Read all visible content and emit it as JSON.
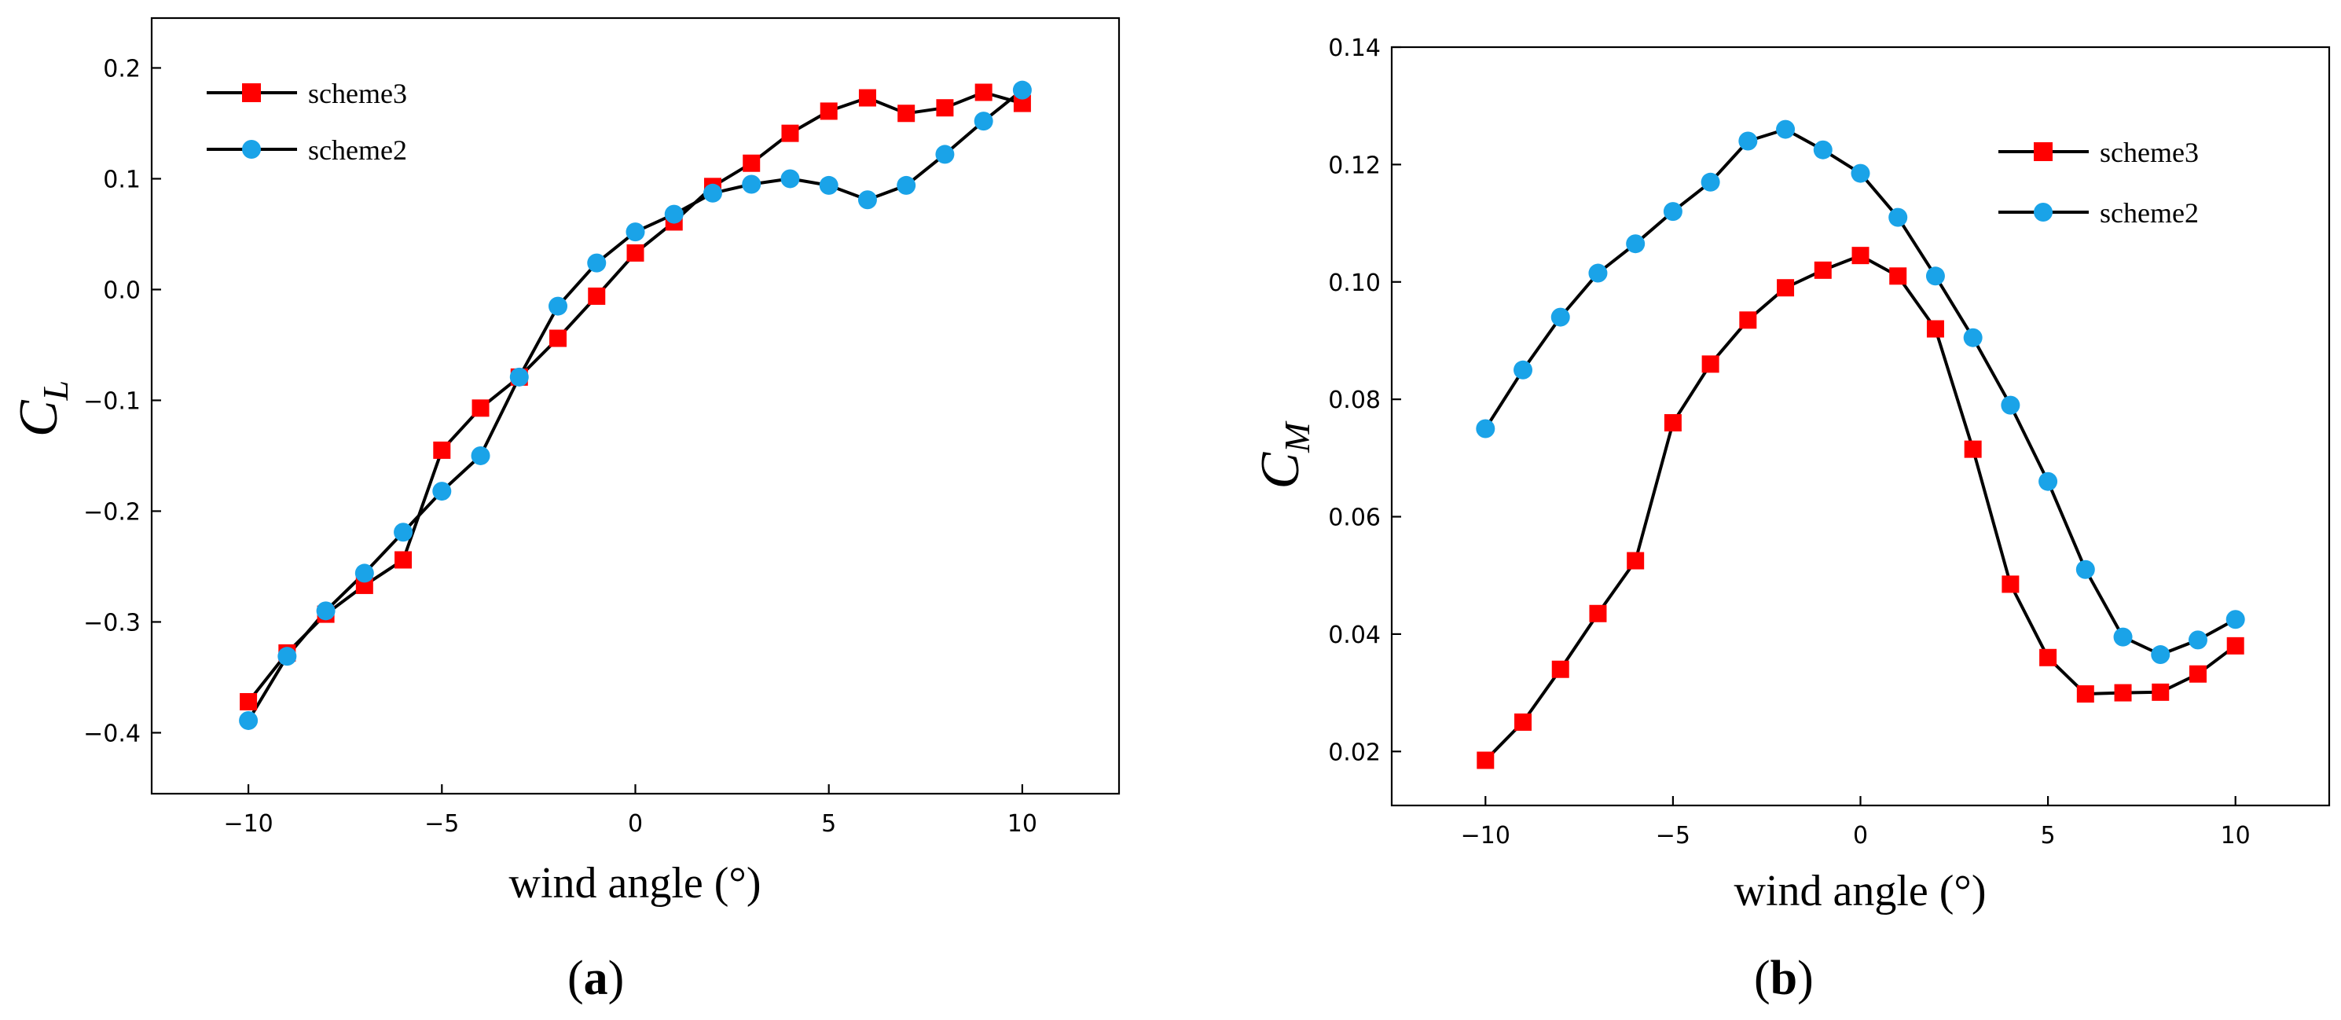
{
  "chart_data": [
    {
      "type": "line",
      "panel_label": "a",
      "title": "",
      "xlabel": "wind angle (°)",
      "ylabel": "C",
      "ylabel_sub": "L",
      "xlim": [
        -12.5,
        12.5
      ],
      "ylim": [
        -0.455,
        0.245
      ],
      "xticks": [
        -10,
        -5,
        0,
        5,
        10
      ],
      "yticks": [
        -0.4,
        -0.3,
        -0.2,
        -0.1,
        0.0,
        0.1,
        0.2
      ],
      "yticklabels": [
        "−0.4",
        "−0.3",
        "−0.2",
        "−0.1",
        "0.0",
        "0.1",
        "0.2"
      ],
      "xticklabels": [
        "−10",
        "−5",
        "0",
        "5",
        "10"
      ],
      "legend_position": "top-left",
      "x": [
        -10,
        -9,
        -8,
        -7,
        -6,
        -5,
        -4,
        -3,
        -2,
        -1,
        0,
        1,
        2,
        3,
        4,
        5,
        6,
        7,
        8,
        9,
        10
      ],
      "series": [
        {
          "name": "scheme3",
          "marker": "square",
          "color": "#ff0000",
          "values": [
            -0.372,
            -0.328,
            -0.293,
            -0.267,
            -0.244,
            -0.145,
            -0.107,
            -0.079,
            -0.044,
            -0.006,
            0.033,
            0.061,
            0.093,
            0.114,
            0.141,
            0.161,
            0.173,
            0.159,
            0.164,
            0.178,
            0.168
          ]
        },
        {
          "name": "scheme2",
          "marker": "circle",
          "color": "#1aa3e8",
          "values": [
            -0.389,
            -0.331,
            -0.29,
            -0.256,
            -0.219,
            -0.182,
            -0.15,
            -0.079,
            -0.015,
            0.024,
            0.052,
            0.068,
            0.087,
            0.095,
            0.1,
            0.094,
            0.081,
            0.094,
            0.122,
            0.152,
            0.18
          ]
        }
      ]
    },
    {
      "type": "line",
      "panel_label": "b",
      "title": "",
      "xlabel": "wind angle (°)",
      "ylabel": "C",
      "ylabel_sub": "M",
      "xlim": [
        -12.5,
        12.5
      ],
      "ylim": [
        0.0108,
        0.14
      ],
      "xticks": [
        -10,
        -5,
        0,
        5,
        10
      ],
      "yticks": [
        0.02,
        0.04,
        0.06,
        0.08,
        0.1,
        0.12,
        0.14
      ],
      "yticklabels": [
        "0.02",
        "0.04",
        "0.06",
        "0.08",
        "0.10",
        "0.12",
        "0.14"
      ],
      "xticklabels": [
        "−10",
        "−5",
        "0",
        "5",
        "10"
      ],
      "legend_position": "top-right",
      "x": [
        -10,
        -9,
        -8,
        -7,
        -6,
        -5,
        -4,
        -3,
        -2,
        -1,
        0,
        1,
        2,
        3,
        4,
        5,
        6,
        7,
        8,
        9,
        10
      ],
      "series": [
        {
          "name": "scheme3",
          "marker": "square",
          "color": "#ff0000",
          "values": [
            0.0185,
            0.025,
            0.034,
            0.0435,
            0.0525,
            0.076,
            0.086,
            0.0935,
            0.099,
            0.102,
            0.1045,
            0.101,
            0.092,
            0.0715,
            0.0485,
            0.036,
            0.0298,
            0.03,
            0.0301,
            0.0332,
            0.038
          ]
        },
        {
          "name": "scheme2",
          "marker": "circle",
          "color": "#1aa3e8",
          "values": [
            0.075,
            0.085,
            0.094,
            0.1015,
            0.1065,
            0.112,
            0.117,
            0.124,
            0.126,
            0.1225,
            0.1185,
            0.111,
            0.101,
            0.0905,
            0.079,
            0.066,
            0.051,
            0.0395,
            0.0365,
            0.039,
            0.0425
          ]
        }
      ]
    }
  ]
}
